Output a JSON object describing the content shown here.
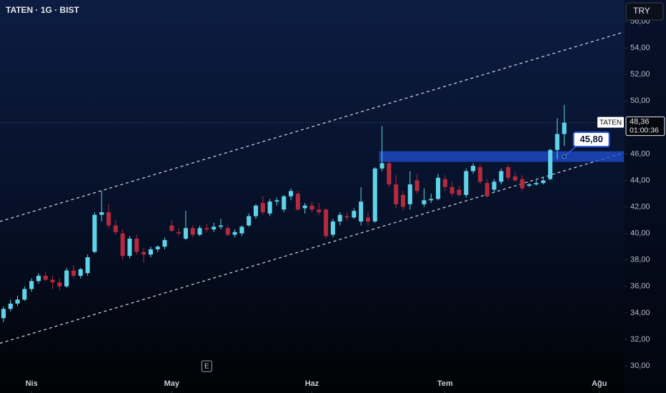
{
  "chart_data": {
    "type": "candlestick",
    "title": "TATEN · 1G · BIST",
    "currency": "TRY",
    "up_color": "#5fd3e8",
    "down_color": "#b22a3e",
    "x": [
      0,
      1,
      2,
      3,
      4,
      5,
      6,
      7,
      8,
      9,
      10,
      11,
      12,
      13,
      14,
      15,
      16,
      17,
      18,
      19,
      20,
      21,
      22,
      23,
      24,
      25,
      26,
      27,
      28,
      29,
      30,
      31,
      32,
      33,
      34,
      35,
      36,
      37,
      38,
      39,
      40,
      41,
      42,
      43,
      44,
      45,
      46,
      47,
      48,
      49,
      50,
      51,
      52,
      53,
      54,
      55,
      56,
      57,
      58,
      59,
      60,
      61,
      62,
      63,
      64,
      65,
      66,
      67,
      68,
      69,
      70,
      71,
      72,
      73,
      74,
      75,
      76,
      77,
      78,
      79,
      80
    ],
    "open": [
      33.6,
      34.3,
      34.7,
      35.0,
      35.8,
      36.4,
      36.8,
      36.5,
      36.3,
      36.0,
      37.2,
      36.8,
      37.0,
      38.6,
      41.4,
      41.6,
      40.6,
      40.0,
      38.3,
      39.6,
      38.6,
      38.4,
      38.8,
      39.0,
      40.6,
      40.1,
      39.6,
      40.4,
      39.9,
      40.4,
      40.3,
      40.5,
      40.4,
      39.9,
      40.0,
      40.6,
      41.3,
      42.3,
      41.5,
      42.4,
      41.8,
      42.8,
      43.0,
      41.9,
      42.1,
      41.8,
      41.8,
      39.9,
      40.9,
      41.3,
      41.2,
      40.9,
      41.2,
      40.9,
      44.9,
      45.3,
      43.7,
      42.9,
      42.2,
      44.0,
      42.2,
      42.5,
      42.6,
      44.1,
      43.5,
      43.3,
      42.9,
      44.7,
      45.0,
      43.8,
      43.3,
      43.9,
      45.0,
      44.3,
      44.1,
      43.6,
      43.7,
      43.8,
      44.1,
      46.3,
      47.5
    ],
    "high": [
      34.5,
      35.0,
      35.3,
      36.0,
      36.6,
      37.0,
      37.1,
      36.8,
      36.6,
      37.4,
      37.6,
      37.4,
      38.4,
      41.6,
      43.2,
      42.2,
      41.0,
      40.3,
      39.8,
      39.9,
      38.9,
      39.0,
      39.1,
      39.7,
      41.0,
      40.4,
      41.7,
      40.6,
      40.6,
      40.7,
      40.8,
      41.1,
      40.6,
      40.3,
      40.6,
      41.5,
      42.2,
      42.8,
      42.6,
      42.7,
      42.9,
      43.4,
      43.2,
      42.3,
      42.4,
      42.3,
      41.9,
      41.1,
      41.6,
      41.6,
      41.9,
      43.5,
      41.6,
      45.0,
      48.1,
      45.5,
      44.4,
      43.2,
      44.7,
      44.5,
      43.4,
      43.0,
      44.5,
      44.4,
      43.9,
      43.6,
      44.9,
      45.3,
      45.2,
      44.1,
      44.1,
      44.9,
      45.2,
      44.6,
      44.4,
      43.8,
      44.0,
      44.2,
      46.4,
      48.7,
      49.7
    ],
    "low": [
      33.3,
      34.1,
      34.5,
      34.9,
      35.6,
      36.2,
      36.4,
      35.8,
      35.7,
      35.9,
      36.6,
      36.6,
      36.8,
      38.5,
      40.9,
      40.4,
      39.9,
      38.0,
      38.1,
      38.4,
      37.8,
      38.2,
      38.6,
      38.8,
      40.1,
      39.8,
      39.5,
      39.7,
      39.8,
      40.1,
      40.1,
      40.3,
      39.8,
      39.7,
      39.8,
      40.5,
      41.1,
      41.4,
      41.3,
      42.1,
      41.6,
      42.5,
      41.7,
      41.5,
      41.6,
      41.4,
      39.6,
      39.7,
      40.6,
      41.0,
      41.1,
      40.6,
      40.6,
      40.8,
      44.7,
      43.5,
      41.9,
      41.7,
      41.8,
      43.0,
      42.0,
      42.3,
      42.5,
      43.2,
      42.8,
      42.8,
      42.7,
      44.5,
      43.7,
      42.7,
      43.1,
      43.7,
      44.0,
      43.9,
      43.2,
      43.5,
      43.6,
      43.7,
      44.0,
      45.6,
      46.6
    ],
    "close": [
      34.3,
      34.7,
      35.0,
      35.8,
      36.4,
      36.8,
      36.5,
      36.3,
      36.0,
      37.2,
      36.8,
      37.3,
      38.2,
      41.4,
      41.6,
      40.6,
      40.1,
      38.3,
      39.6,
      38.6,
      38.4,
      38.8,
      39.0,
      39.5,
      40.2,
      40.0,
      40.4,
      39.9,
      40.4,
      40.3,
      40.5,
      40.6,
      39.9,
      40.1,
      40.5,
      41.3,
      42.1,
      41.6,
      42.4,
      42.5,
      42.8,
      43.2,
      41.8,
      42.1,
      41.8,
      41.6,
      39.8,
      40.9,
      41.4,
      41.2,
      41.7,
      42.4,
      40.9,
      44.9,
      45.3,
      43.7,
      42.2,
      42.0,
      43.7,
      43.2,
      42.5,
      42.6,
      44.2,
      43.5,
      43.0,
      42.9,
      44.7,
      45.1,
      43.9,
      42.8,
      43.9,
      44.7,
      44.2,
      44.0,
      43.4,
      43.7,
      43.8,
      44.0,
      46.3,
      47.5,
      48.36
    ],
    "xlim": [
      -0.5,
      88.5
    ],
    "xticks": [
      {
        "value": 4,
        "label": "Nis"
      },
      {
        "value": 24,
        "label": "May"
      },
      {
        "value": 44,
        "label": "Haz"
      },
      {
        "value": 63,
        "label": "Tem"
      },
      {
        "value": 85,
        "label": "Ağu"
      }
    ],
    "ylim": [
      27.95,
      57.62
    ],
    "yticks": [
      {
        "value": 30,
        "label": "30,00"
      },
      {
        "value": 32,
        "label": "32,00"
      },
      {
        "value": 34,
        "label": "34,00"
      },
      {
        "value": 36,
        "label": "36,00"
      },
      {
        "value": 38,
        "label": "38,00"
      },
      {
        "value": 40,
        "label": "40,00"
      },
      {
        "value": 42,
        "label": "42,00"
      },
      {
        "value": 44,
        "label": "44,00"
      },
      {
        "value": 46,
        "label": "46,00"
      },
      {
        "value": 48,
        "label": "48,00"
      },
      {
        "value": 50,
        "label": "50,00"
      },
      {
        "value": 52,
        "label": "52,00"
      },
      {
        "value": 54,
        "label": "54,00"
      },
      {
        "value": 56,
        "label": "56,00"
      }
    ],
    "channel": {
      "upper": {
        "x": [
          -0.5,
          88.5
        ],
        "y": [
          40.9,
          55.2
        ]
      },
      "lower": {
        "x": [
          -0.5,
          88.5
        ],
        "y": [
          31.7,
          46.1
        ]
      }
    },
    "zone": {
      "start": 54,
      "low": 45.4,
      "high": 46.2
    },
    "annotation": {
      "label": "45,80",
      "value": 45.8,
      "x": 80
    },
    "last_price": {
      "symbol": "TATEN",
      "value": 48.36,
      "label": "48,36",
      "countdown": "01:00:36"
    },
    "event": {
      "label": "E",
      "x": 29
    }
  }
}
